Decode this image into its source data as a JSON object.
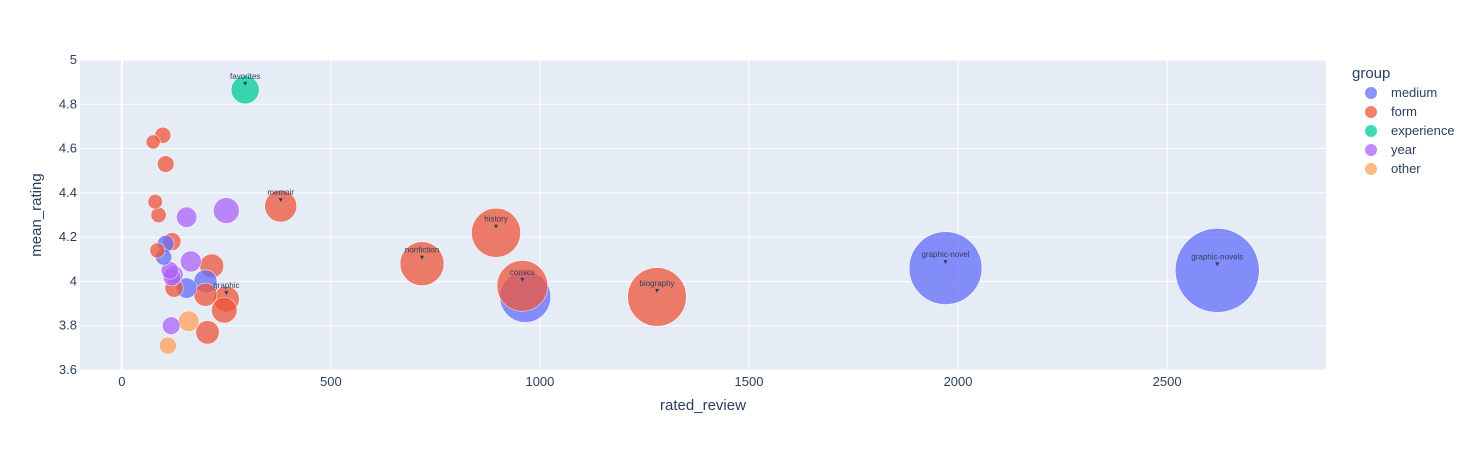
{
  "chart_data": {
    "type": "scatter",
    "variant": "bubble",
    "xlabel": "rated_review",
    "ylabel": "mean_rating",
    "xlim": [
      -100,
      2880
    ],
    "ylim": [
      3.6,
      5.0
    ],
    "x_ticks": [
      0,
      500,
      1000,
      1500,
      2000,
      2500
    ],
    "x_tick_labels": [
      "0",
      "500",
      "1000",
      "1500",
      "2000",
      "2500"
    ],
    "y_ticks": [
      3.6,
      3.8,
      4.0,
      4.2,
      4.4,
      4.6,
      4.8,
      5.0
    ],
    "y_tick_labels": [
      "3.6",
      "3.8",
      "4",
      "4.2",
      "4.4",
      "4.6",
      "4.8",
      "5"
    ],
    "grid": true,
    "legend_title": "group",
    "legend_position": "right",
    "series": [
      {
        "name": "medium",
        "color": "#636efa",
        "points": [
          {
            "x": 2620,
            "y": 4.05,
            "size": 2620,
            "label": "graphic-novels"
          },
          {
            "x": 1970,
            "y": 4.06,
            "size": 1970,
            "label": "graphic-novel"
          },
          {
            "x": 965,
            "y": 3.93,
            "size": 965
          },
          {
            "x": 200,
            "y": 4.0,
            "size": 200
          },
          {
            "x": 155,
            "y": 3.97,
            "size": 155
          },
          {
            "x": 100,
            "y": 4.11,
            "size": 100
          },
          {
            "x": 105,
            "y": 4.17,
            "size": 105
          }
        ]
      },
      {
        "name": "form",
        "color": "#ef553b",
        "points": [
          {
            "x": 1280,
            "y": 3.93,
            "size": 1280,
            "label": "biography"
          },
          {
            "x": 958,
            "y": 3.98,
            "size": 958,
            "label": "comics"
          },
          {
            "x": 895,
            "y": 4.22,
            "size": 895,
            "label": "history"
          },
          {
            "x": 718,
            "y": 4.08,
            "size": 718,
            "label": "nonfiction"
          },
          {
            "x": 380,
            "y": 4.34,
            "size": 380,
            "label": "memoir"
          },
          {
            "x": 250,
            "y": 3.92,
            "size": 250,
            "label": "graphic"
          },
          {
            "x": 245,
            "y": 3.87,
            "size": 245
          },
          {
            "x": 215,
            "y": 4.07,
            "size": 215
          },
          {
            "x": 200,
            "y": 3.94,
            "size": 200
          },
          {
            "x": 205,
            "y": 3.77,
            "size": 205
          },
          {
            "x": 120,
            "y": 4.18,
            "size": 120
          },
          {
            "x": 125,
            "y": 3.97,
            "size": 125
          },
          {
            "x": 85,
            "y": 4.14,
            "size": 85
          },
          {
            "x": 88,
            "y": 4.3,
            "size": 88
          },
          {
            "x": 80,
            "y": 4.36,
            "size": 80
          },
          {
            "x": 75,
            "y": 4.63,
            "size": 75
          },
          {
            "x": 98,
            "y": 4.66,
            "size": 98
          },
          {
            "x": 105,
            "y": 4.53,
            "size": 105
          }
        ]
      },
      {
        "name": "experience",
        "color": "#00cc96",
        "points": [
          {
            "x": 295,
            "y": 4.865,
            "size": 295,
            "label": "favorites"
          }
        ]
      },
      {
        "name": "year",
        "color": "#ab63fa",
        "points": [
          {
            "x": 250,
            "y": 4.32,
            "size": 250
          },
          {
            "x": 155,
            "y": 4.29,
            "size": 155
          },
          {
            "x": 165,
            "y": 4.09,
            "size": 165
          },
          {
            "x": 125,
            "y": 4.03,
            "size": 125
          },
          {
            "x": 115,
            "y": 4.05,
            "size": 115
          },
          {
            "x": 120,
            "y": 4.02,
            "size": 120
          },
          {
            "x": 118,
            "y": 3.8,
            "size": 118
          }
        ]
      },
      {
        "name": "other",
        "color": "#ffa15a",
        "points": [
          {
            "x": 160,
            "y": 3.82,
            "size": 160
          },
          {
            "x": 110,
            "y": 3.71,
            "size": 110
          }
        ]
      }
    ]
  }
}
